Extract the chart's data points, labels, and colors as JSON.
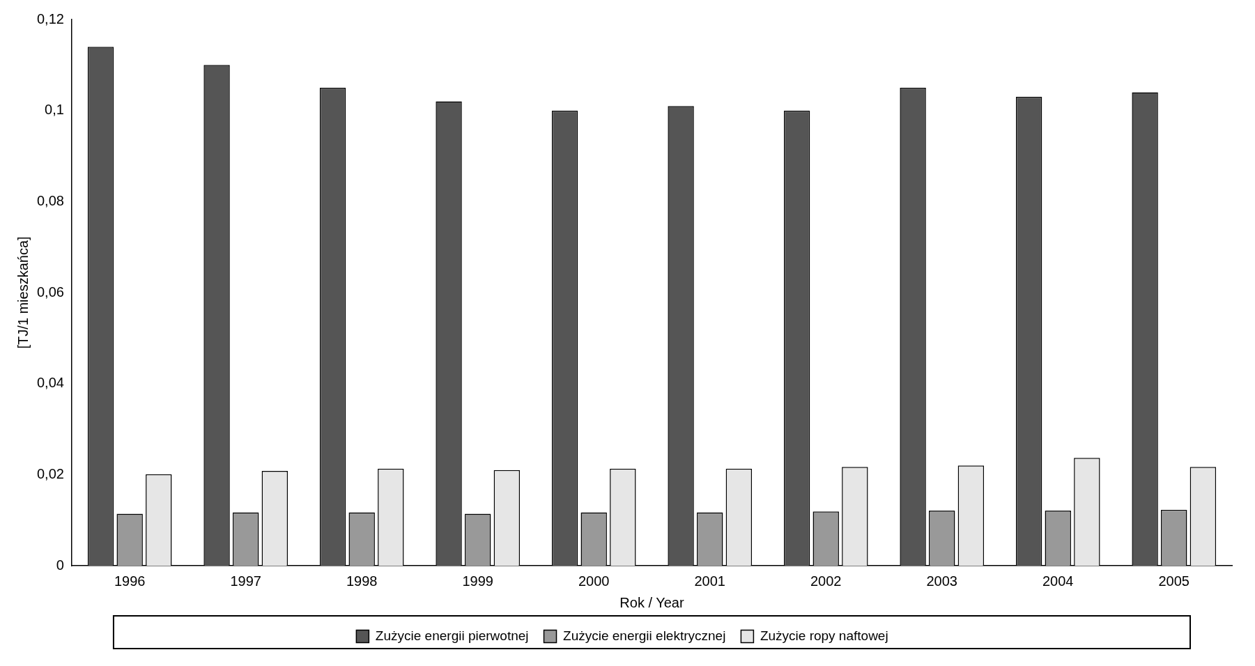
{
  "chart_data": {
    "type": "bar",
    "xlabel": "Rok / Year",
    "ylabel": "[TJ/1 mieszkańca]",
    "categories": [
      "1996",
      "1997",
      "1998",
      "1999",
      "2000",
      "2001",
      "2002",
      "2003",
      "2004",
      "2005"
    ],
    "series": [
      {
        "name": "Zużycie energii pierwotnej",
        "color": "#555555",
        "values": [
          0.114,
          0.11,
          0.105,
          0.102,
          0.1,
          0.101,
          0.1,
          0.105,
          0.103,
          0.104
        ]
      },
      {
        "name": "Zużycie energii elektrycznej",
        "color": "#999999",
        "values": [
          0.0114,
          0.0117,
          0.0117,
          0.0114,
          0.0117,
          0.0117,
          0.0119,
          0.0121,
          0.0121,
          0.0123
        ]
      },
      {
        "name": "Zużycie ropy naftowej",
        "color": "#e6e6e6",
        "values": [
          0.0201,
          0.0208,
          0.0213,
          0.021,
          0.0213,
          0.0213,
          0.0217,
          0.022,
          0.0237,
          0.0217
        ]
      }
    ],
    "ylim": [
      0,
      0.12
    ],
    "yticks": [
      0,
      {
        "value": 0.02,
        "label": "0,02"
      },
      {
        "value": 0.04,
        "label": "0,04"
      },
      {
        "value": 0.06,
        "label": "0,06"
      },
      {
        "value": 0.08,
        "label": "0,08"
      },
      {
        "value": 0.1,
        "label": "0,1"
      },
      {
        "value": 0.12,
        "label": "0,12"
      }
    ],
    "grid": false,
    "legend": "bottom"
  }
}
